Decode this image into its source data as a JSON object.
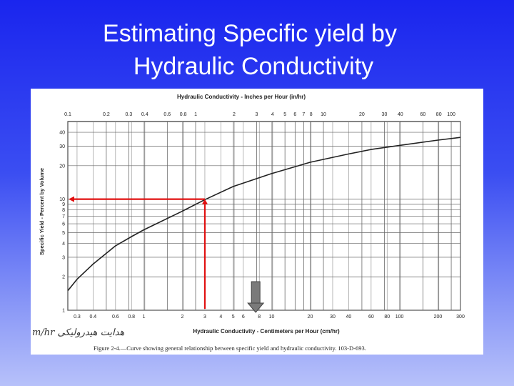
{
  "slide": {
    "title_line1": "Estimating Specific yield by",
    "title_line2": "Hydraulic Conductivity",
    "background_top": "#1a25ee",
    "background_bottom": "#b7c1fa"
  },
  "figure": {
    "handwritten_note": "m/hr هدایت هیدرولیکی",
    "caption": "Figure 2-4.—Curve showing general relationship between specific yield and hydraulic conductivity. 103-D-693."
  },
  "chart_data": {
    "type": "line",
    "x_scale": "log",
    "y_scale": "log",
    "top_axis_label": "Hydraulic Conductivity - Inches per Hour (in/hr)",
    "xlabel": "Hydraulic Conductivity - Centimeters per Hour (cm/hr)",
    "ylabel": "Specific Yield - Percent by Volume",
    "xlim": [
      0.254,
      300
    ],
    "ylim": [
      1,
      50
    ],
    "grid": true,
    "top_ticks": [
      "0.1",
      "0.2",
      "0.3",
      "0.4",
      "0.6",
      "0.8",
      "1",
      "2",
      "3",
      "4",
      "5",
      "6",
      "7",
      "8",
      "10",
      "20",
      "30",
      "40",
      "60",
      "80",
      "100"
    ],
    "bottom_ticks": [
      "0.3",
      "0.4",
      "0.6",
      "0.8",
      "1",
      "2",
      "3",
      "4",
      "5",
      "6",
      "8",
      "10",
      "20",
      "30",
      "40",
      "60",
      "80",
      "100",
      "200",
      "300"
    ],
    "y_ticks": [
      "1",
      "2",
      "3",
      "4",
      "5",
      "6",
      "7",
      "8",
      "9",
      "10",
      "20",
      "30",
      "40"
    ],
    "series": [
      {
        "x": [
          0.254,
          0.3,
          0.4,
          0.6,
          0.8,
          1,
          2,
          3,
          5,
          10,
          20,
          40,
          60,
          100,
          200,
          300
        ],
        "values": [
          1.5,
          1.9,
          2.6,
          3.8,
          4.6,
          5.3,
          7.8,
          9.9,
          13,
          17,
          21.5,
          25.5,
          28,
          30.5,
          34,
          36
        ]
      }
    ],
    "annotation": {
      "color": "#e01010",
      "x": 3,
      "y": 10
    },
    "marker_arrow": {
      "color": "#7a7a7a",
      "x": 7.5
    }
  }
}
